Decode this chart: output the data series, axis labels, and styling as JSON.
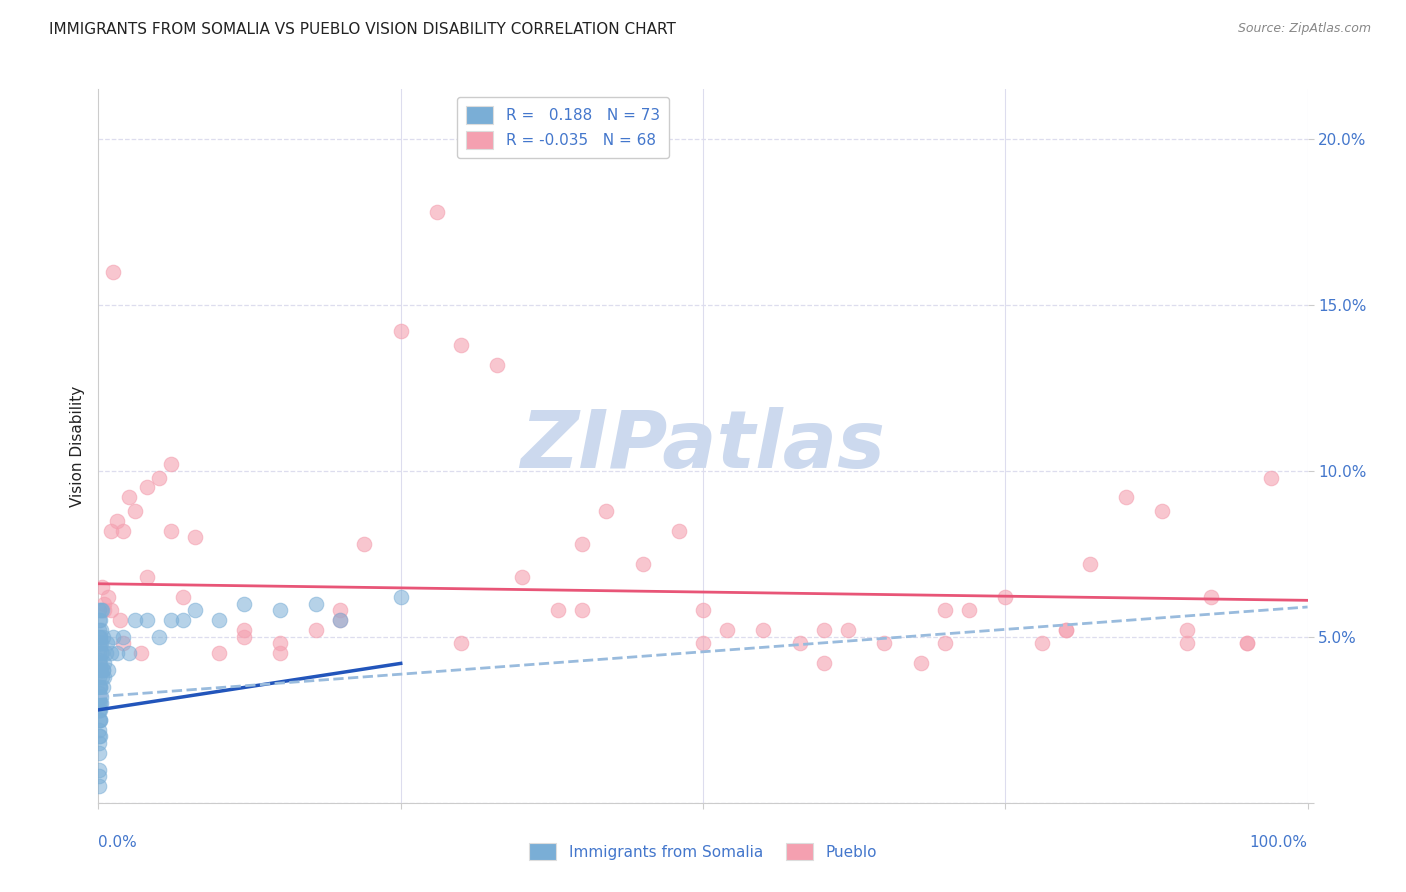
{
  "title": "IMMIGRANTS FROM SOMALIA VS PUEBLO VISION DISABILITY CORRELATION CHART",
  "source": "Source: ZipAtlas.com",
  "ylabel": "Vision Disability",
  "ytick_values": [
    0.0,
    5.0,
    10.0,
    15.0,
    20.0
  ],
  "xlim": [
    0.0,
    100.0
  ],
  "ylim": [
    0.0,
    21.5
  ],
  "legend_r1": "R =   0.188",
  "legend_n1": "N = 73",
  "legend_r2": "R = -0.035",
  "legend_n2": "N = 68",
  "blue_color": "#7aaed6",
  "pink_color": "#f4a0b0",
  "trendline_blue_solid": "#2255bb",
  "trendline_pink_solid": "#e85577",
  "trendline_blue_dashed": "#99bbdd",
  "background_color": "#ffffff",
  "grid_color": "#ddddee",
  "watermark_text": "ZIPatlas",
  "watermark_color": "#ccd9ee",
  "title_color": "#222222",
  "axis_label_color": "#4477cc",
  "blue_scatter_x": [
    0.05,
    0.05,
    0.05,
    0.05,
    0.05,
    0.05,
    0.05,
    0.05,
    0.05,
    0.05,
    0.05,
    0.05,
    0.05,
    0.05,
    0.05,
    0.05,
    0.05,
    0.05,
    0.05,
    0.05,
    0.05,
    0.1,
    0.1,
    0.1,
    0.1,
    0.1,
    0.1,
    0.1,
    0.15,
    0.15,
    0.15,
    0.15,
    0.2,
    0.2,
    0.2,
    0.25,
    0.25,
    0.3,
    0.3,
    0.35,
    0.4,
    0.4,
    0.5,
    0.5,
    0.6,
    0.7,
    0.8,
    1.0,
    1.2,
    1.5,
    2.0,
    2.5,
    3.0,
    4.0,
    5.0,
    6.0,
    7.0,
    8.0,
    10.0,
    12.0,
    15.0,
    18.0,
    20.0,
    25.0,
    0.05,
    0.05,
    0.05,
    0.08,
    0.12,
    0.18,
    0.22,
    0.28,
    0.35
  ],
  "blue_scatter_y": [
    2.5,
    2.8,
    3.0,
    3.2,
    3.5,
    3.8,
    4.0,
    4.2,
    4.5,
    2.0,
    1.5,
    1.8,
    5.0,
    5.5,
    4.8,
    2.2,
    3.3,
    0.5,
    1.0,
    4.3,
    5.2,
    3.0,
    4.0,
    2.5,
    5.5,
    3.5,
    4.8,
    2.0,
    3.5,
    4.2,
    5.0,
    2.8,
    4.5,
    3.0,
    5.8,
    4.0,
    3.2,
    3.8,
    4.5,
    4.0,
    3.5,
    5.0,
    4.2,
    3.8,
    4.5,
    4.8,
    4.0,
    4.5,
    5.0,
    4.5,
    5.0,
    4.5,
    5.5,
    5.5,
    5.0,
    5.5,
    5.5,
    5.8,
    5.5,
    6.0,
    5.8,
    6.0,
    5.5,
    6.2,
    2.8,
    5.8,
    0.8,
    3.2,
    2.5,
    4.8,
    5.2,
    5.8,
    4.0
  ],
  "pink_scatter_x": [
    0.3,
    0.5,
    0.8,
    1.0,
    1.5,
    2.0,
    2.5,
    3.0,
    4.0,
    5.0,
    6.0,
    8.0,
    10.0,
    12.0,
    15.0,
    18.0,
    20.0,
    22.0,
    25.0,
    28.0,
    30.0,
    33.0,
    35.0,
    38.0,
    40.0,
    42.0,
    45.0,
    48.0,
    50.0,
    52.0,
    55.0,
    58.0,
    60.0,
    62.0,
    65.0,
    68.0,
    70.0,
    72.0,
    75.0,
    78.0,
    80.0,
    82.0,
    85.0,
    88.0,
    90.0,
    92.0,
    95.0,
    97.0,
    0.5,
    1.0,
    2.0,
    4.0,
    7.0,
    12.0,
    20.0,
    30.0,
    40.0,
    50.0,
    60.0,
    70.0,
    80.0,
    90.0,
    95.0,
    1.2,
    1.8,
    3.5,
    6.0,
    15.0
  ],
  "pink_scatter_y": [
    6.5,
    6.0,
    6.2,
    5.8,
    8.5,
    8.2,
    9.2,
    8.8,
    9.5,
    9.8,
    8.2,
    8.0,
    4.5,
    5.0,
    4.8,
    5.2,
    5.5,
    7.8,
    14.2,
    17.8,
    13.8,
    13.2,
    6.8,
    5.8,
    7.8,
    8.8,
    7.2,
    8.2,
    5.8,
    5.2,
    5.2,
    4.8,
    4.2,
    5.2,
    4.8,
    4.2,
    5.8,
    5.8,
    6.2,
    4.8,
    5.2,
    7.2,
    9.2,
    8.8,
    4.8,
    6.2,
    4.8,
    9.8,
    5.8,
    8.2,
    4.8,
    6.8,
    6.2,
    5.2,
    5.8,
    4.8,
    5.8,
    4.8,
    5.2,
    4.8,
    5.2,
    5.2,
    4.8,
    16.0,
    5.5,
    4.5,
    10.2,
    4.5
  ],
  "trendline_blue_solid_x0": 0.0,
  "trendline_blue_solid_y0": 2.8,
  "trendline_blue_solid_x1": 25.0,
  "trendline_blue_solid_y1": 4.2,
  "trendline_pink_solid_x0": 0.0,
  "trendline_pink_solid_y0": 6.6,
  "trendline_pink_solid_x1": 100.0,
  "trendline_pink_solid_y1": 6.1,
  "trendline_blue_dashed_x0": 0.0,
  "trendline_blue_dashed_y0": 3.2,
  "trendline_blue_dashed_x1": 100.0,
  "trendline_blue_dashed_y1": 5.9
}
